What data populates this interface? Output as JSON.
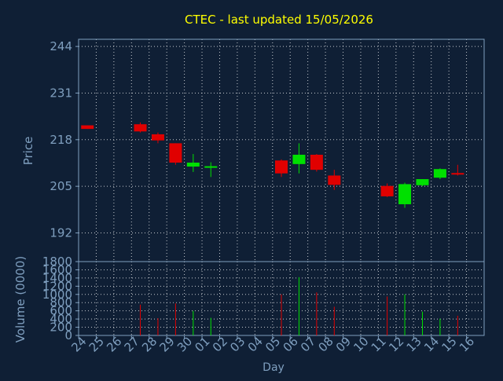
{
  "chart_data": {
    "type": "candlestick",
    "title": "CTEC - last updated 15/05/2026",
    "xlabel": "Day",
    "ylabel": "Price",
    "volume_label": "Volume (0000)",
    "grid": true,
    "price_axis": {
      "ylim": [
        184,
        246
      ],
      "ticks": [
        192,
        205,
        218,
        231,
        244
      ]
    },
    "volume_axis": {
      "ylim": [
        0,
        1800
      ],
      "ticks": [
        0,
        200,
        400,
        600,
        800,
        1000,
        1200,
        1400,
        1600,
        1800
      ]
    },
    "x_labels": [
      "24",
      "25",
      "26",
      "27",
      "28",
      "29",
      "30",
      "01",
      "02",
      "03",
      "04",
      "05",
      "06",
      "07",
      "08",
      "09",
      "10",
      "11",
      "12",
      "13",
      "14",
      "15",
      "16"
    ],
    "candles": [
      {
        "day": "24",
        "open": 222.0,
        "close": 221.0,
        "high": 222.0,
        "low": 221.0,
        "volume": 0
      },
      {
        "day": "27",
        "open": 222.3,
        "close": 220.3,
        "high": 222.8,
        "low": 220.0,
        "volume": 750
      },
      {
        "day": "28",
        "open": 219.5,
        "close": 217.8,
        "high": 220.0,
        "low": 217.0,
        "volume": 420
      },
      {
        "day": "29",
        "open": 217.0,
        "close": 211.6,
        "high": 217.0,
        "low": 211.0,
        "volume": 780
      },
      {
        "day": "30",
        "open": 210.5,
        "close": 211.6,
        "high": 214.0,
        "low": 209.0,
        "volume": 600
      },
      {
        "day": "01",
        "open": 210.2,
        "close": 210.6,
        "high": 211.7,
        "low": 207.6,
        "volume": 430
      },
      {
        "day": "05",
        "open": 212.2,
        "close": 208.6,
        "high": 212.5,
        "low": 207.6,
        "volume": 1000
      },
      {
        "day": "06",
        "open": 211.2,
        "close": 213.8,
        "high": 217.0,
        "low": 208.6,
        "volume": 1420
      },
      {
        "day": "07",
        "open": 213.8,
        "close": 209.6,
        "high": 214.0,
        "low": 209.1,
        "volume": 1050
      },
      {
        "day": "08",
        "open": 208.0,
        "close": 205.4,
        "high": 209.6,
        "low": 204.0,
        "volume": 700
      },
      {
        "day": "11",
        "open": 205.1,
        "close": 202.2,
        "high": 205.8,
        "low": 202.0,
        "volume": 950
      },
      {
        "day": "12",
        "open": 200.0,
        "close": 205.6,
        "high": 206.0,
        "low": 199.0,
        "volume": 1000
      },
      {
        "day": "13",
        "open": 205.3,
        "close": 207.0,
        "high": 207.0,
        "low": 205.0,
        "volume": 580
      },
      {
        "day": "14",
        "open": 207.4,
        "close": 209.8,
        "high": 210.0,
        "low": 207.0,
        "volume": 410
      },
      {
        "day": "15",
        "open": 208.7,
        "close": 208.3,
        "high": 211.0,
        "low": 208.0,
        "volume": 480
      }
    ],
    "colors": {
      "up": "#00e000",
      "down": "#e00000",
      "background": "#0f1f35",
      "frame": "#7f9fbf",
      "axis_text": "#7f9fbf",
      "title": "#ffff00",
      "grid": "#ffffff"
    }
  }
}
